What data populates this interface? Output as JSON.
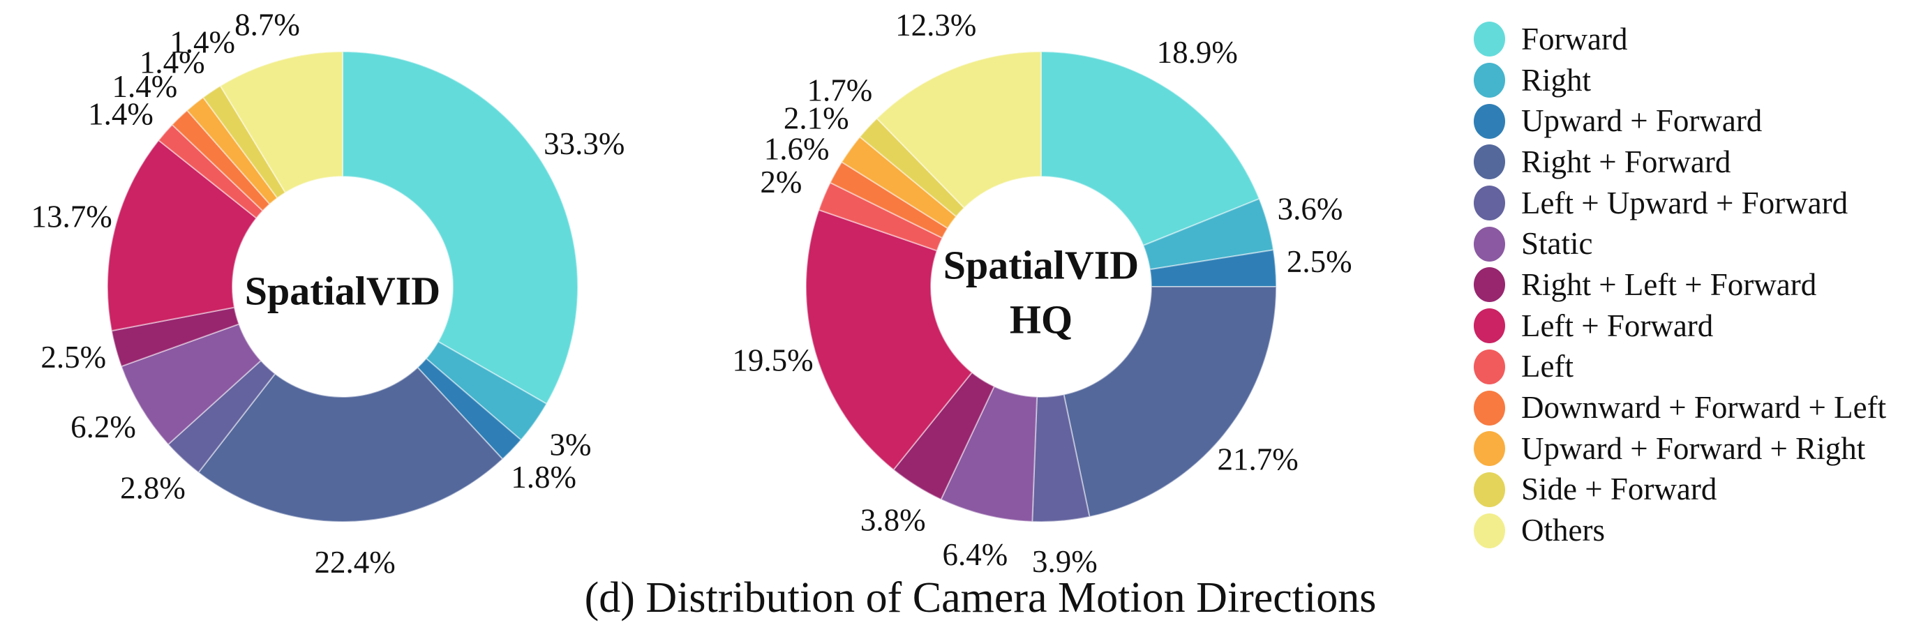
{
  "caption": "(d) Distribution of Camera Motion Directions",
  "chart_data": {
    "type": "pie",
    "subtype": "donut",
    "caption": "(d) Distribution of Camera Motion Directions",
    "start_angle_deg": 0,
    "direction": "clockwise",
    "hole_ratio": 0.47,
    "legend_position": "right",
    "categories": [
      "Forward",
      "Right",
      "Upward + Forward",
      "Right + Forward",
      "Left + Upward + Forward",
      "Static",
      "Right + Left + Forward",
      "Left + Forward",
      "Left",
      "Downward + Forward + Left",
      "Upward + Forward + Right",
      "Side + Forward",
      "Others"
    ],
    "colors": [
      "#64DBDB",
      "#45B5CD",
      "#2F7FB6",
      "#54689C",
      "#64639F",
      "#8B59A2",
      "#97266F",
      "#CB2364",
      "#F25B5C",
      "#F87A40",
      "#FAAE3F",
      "#E4D45A",
      "#F2EE8D"
    ],
    "charts": [
      {
        "name": "SpatialVID",
        "center_label": [
          "SpatialVID"
        ],
        "values": [
          33.3,
          3,
          1.8,
          22.4,
          2.8,
          6.2,
          2.5,
          13.7,
          1.4,
          1.4,
          1.4,
          1.4,
          8.7
        ],
        "labels": [
          "33.3%",
          "3%",
          "1.8%",
          "22.4%",
          "2.8%",
          "6.2%",
          "2.5%",
          "13.7%",
          "1.4%",
          "1.4%",
          "1.4%",
          "1.4%",
          "8.7%"
        ]
      },
      {
        "name": "SpatialVID HQ",
        "center_label": [
          "SpatialVID",
          "HQ"
        ],
        "values": [
          18.9,
          3.6,
          2.5,
          21.7,
          3.9,
          6.4,
          3.8,
          19.5,
          2,
          1.6,
          2.1,
          1.7,
          12.3
        ],
        "labels": [
          "18.9%",
          "3.6%",
          "2.5%",
          "21.7%",
          "3.9%",
          "6.4%",
          "3.8%",
          "19.5%",
          "2%",
          "1.6%",
          "2.1%",
          "1.7%",
          "12.3%"
        ]
      }
    ]
  }
}
